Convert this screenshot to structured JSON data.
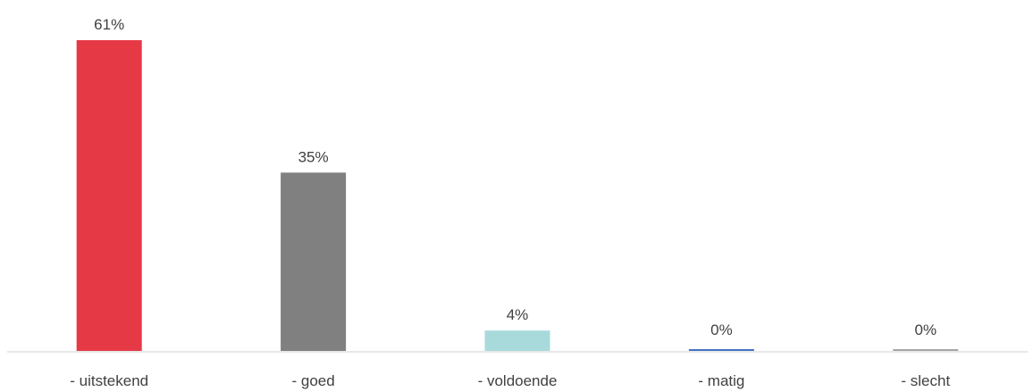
{
  "chart_data": {
    "type": "bar",
    "categories": [
      "- uitstekend",
      "- goed",
      "- voldoende",
      "- matig",
      "- slecht"
    ],
    "values": [
      61,
      35,
      4,
      0,
      0
    ],
    "value_labels": [
      "61%",
      "35%",
      "4%",
      "0%",
      "0%"
    ],
    "colors": [
      "#e63946",
      "#808080",
      "#a8dadc",
      "#4472c4",
      "#a5a5a5"
    ],
    "ylim": [
      0,
      61
    ],
    "grid": false,
    "legend": "none"
  }
}
